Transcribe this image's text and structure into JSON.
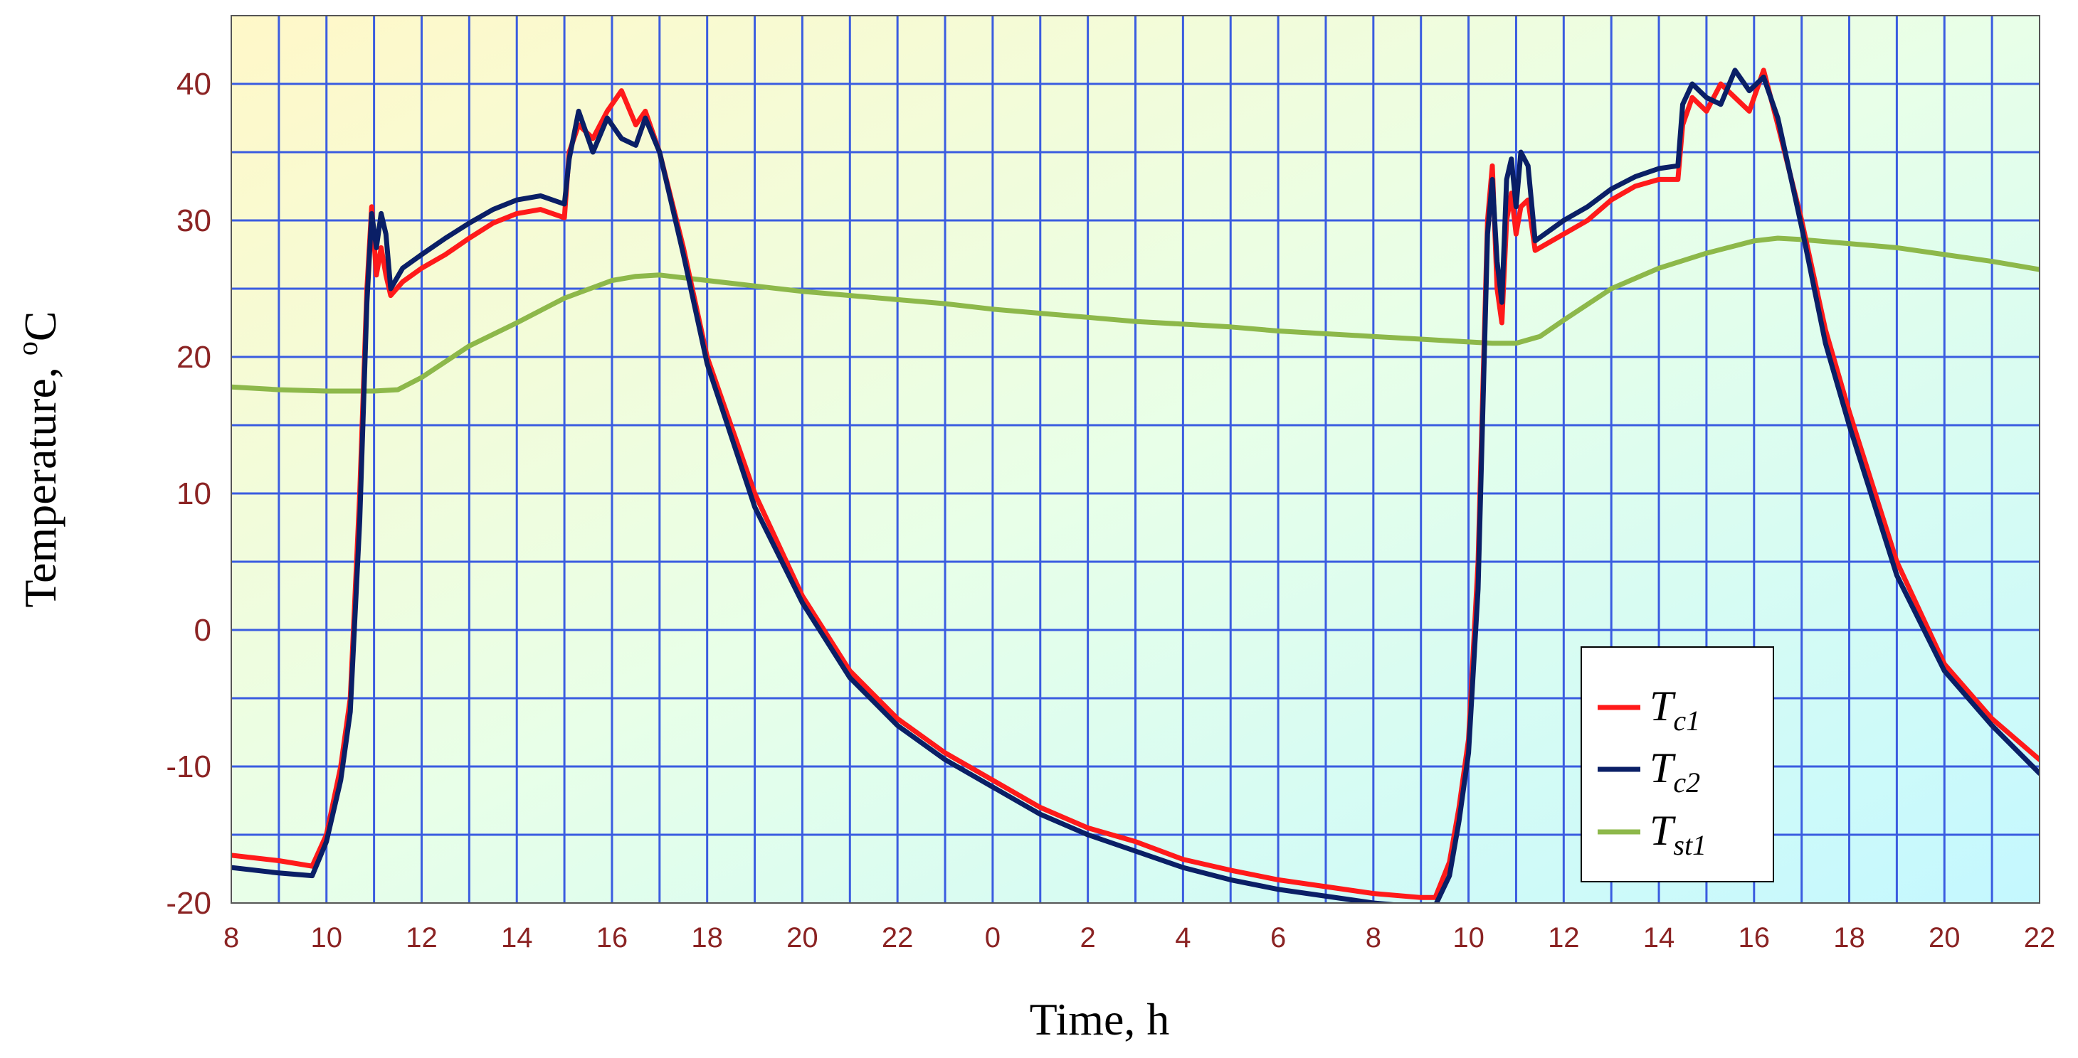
{
  "chart_data": {
    "type": "line",
    "xlabel": "Time, h",
    "ylabel_main": "Temperature, ",
    "ylabel_sup": "o",
    "ylabel_unit": "C",
    "ylim": [
      -20,
      45
    ],
    "xlim": [
      8,
      46
    ],
    "grid": true,
    "legend_position": "bottom-right",
    "y_ticks": [
      -20,
      -10,
      0,
      10,
      20,
      30,
      40
    ],
    "x_ticks": [
      {
        "x": 8,
        "label": "8"
      },
      {
        "x": 10,
        "label": "10"
      },
      {
        "x": 12,
        "label": "12"
      },
      {
        "x": 14,
        "label": "14"
      },
      {
        "x": 16,
        "label": "16"
      },
      {
        "x": 18,
        "label": "18"
      },
      {
        "x": 20,
        "label": "20"
      },
      {
        "x": 22,
        "label": "22"
      },
      {
        "x": 24,
        "label": "0"
      },
      {
        "x": 26,
        "label": "2"
      },
      {
        "x": 28,
        "label": "4"
      },
      {
        "x": 30,
        "label": "6"
      },
      {
        "x": 32,
        "label": "8"
      },
      {
        "x": 34,
        "label": "10"
      },
      {
        "x": 36,
        "label": "12"
      },
      {
        "x": 38,
        "label": "14"
      },
      {
        "x": 40,
        "label": "16"
      },
      {
        "x": 42,
        "label": "18"
      },
      {
        "x": 44,
        "label": "20"
      },
      {
        "x": 46,
        "label": "22"
      }
    ],
    "series": [
      {
        "name_main": "T",
        "name_sub": "c1",
        "color": "#ff1a1a",
        "points": [
          [
            8,
            -16.5
          ],
          [
            9,
            -16.9
          ],
          [
            9.7,
            -17.3
          ],
          [
            10.0,
            -15
          ],
          [
            10.3,
            -10
          ],
          [
            10.5,
            -5
          ],
          [
            10.7,
            10
          ],
          [
            10.85,
            25
          ],
          [
            10.95,
            31
          ],
          [
            11.05,
            26
          ],
          [
            11.15,
            28
          ],
          [
            11.25,
            26
          ],
          [
            11.35,
            24.5
          ],
          [
            11.6,
            25.5
          ],
          [
            12,
            26.5
          ],
          [
            12.5,
            27.5
          ],
          [
            13,
            28.7
          ],
          [
            13.5,
            29.8
          ],
          [
            14,
            30.5
          ],
          [
            14.5,
            30.8
          ],
          [
            15,
            30.2
          ],
          [
            15.1,
            35
          ],
          [
            15.3,
            37
          ],
          [
            15.6,
            36
          ],
          [
            15.9,
            38
          ],
          [
            16.2,
            39.5
          ],
          [
            16.5,
            37
          ],
          [
            16.7,
            38
          ],
          [
            17,
            35
          ],
          [
            17.5,
            28
          ],
          [
            18,
            20
          ],
          [
            19,
            10
          ],
          [
            20,
            2.5
          ],
          [
            21,
            -3
          ],
          [
            22,
            -6.5
          ],
          [
            23,
            -9
          ],
          [
            24,
            -11
          ],
          [
            24.5,
            -12
          ],
          [
            25,
            -13
          ],
          [
            26,
            -14.5
          ],
          [
            27,
            -15.5
          ],
          [
            28,
            -16.8
          ],
          [
            29,
            -17.6
          ],
          [
            30,
            -18.3
          ],
          [
            31,
            -18.8
          ],
          [
            32,
            -19.3
          ],
          [
            33,
            -19.6
          ],
          [
            33.3,
            -19.6
          ],
          [
            33.6,
            -17
          ],
          [
            33.8,
            -13
          ],
          [
            34.0,
            -8
          ],
          [
            34.2,
            5
          ],
          [
            34.4,
            30
          ],
          [
            34.5,
            34
          ],
          [
            34.6,
            25
          ],
          [
            34.7,
            22.5
          ],
          [
            34.8,
            30
          ],
          [
            34.9,
            32
          ],
          [
            35.0,
            29
          ],
          [
            35.1,
            31
          ],
          [
            35.25,
            31.5
          ],
          [
            35.4,
            27.8
          ],
          [
            36,
            29
          ],
          [
            36.5,
            30
          ],
          [
            37,
            31.5
          ],
          [
            37.5,
            32.5
          ],
          [
            38,
            33
          ],
          [
            38.4,
            33
          ],
          [
            38.5,
            37
          ],
          [
            38.7,
            39
          ],
          [
            39,
            38
          ],
          [
            39.3,
            40
          ],
          [
            39.6,
            39
          ],
          [
            39.9,
            38
          ],
          [
            40.2,
            41
          ],
          [
            40.5,
            37
          ],
          [
            41,
            30
          ],
          [
            41.5,
            22
          ],
          [
            42,
            16
          ],
          [
            43,
            5
          ],
          [
            44,
            -2.5
          ],
          [
            45,
            -6.5
          ],
          [
            46,
            -9.5
          ]
        ]
      },
      {
        "name_main": "T",
        "name_sub": "c2",
        "color": "#0a1f66",
        "points": [
          [
            8,
            -17.4
          ],
          [
            9,
            -17.8
          ],
          [
            9.7,
            -18
          ],
          [
            10.0,
            -15.5
          ],
          [
            10.3,
            -11
          ],
          [
            10.5,
            -6
          ],
          [
            10.7,
            8
          ],
          [
            10.85,
            24
          ],
          [
            10.95,
            30.5
          ],
          [
            11.05,
            28
          ],
          [
            11.15,
            30.5
          ],
          [
            11.25,
            29
          ],
          [
            11.35,
            25
          ],
          [
            11.6,
            26.5
          ],
          [
            12,
            27.5
          ],
          [
            12.5,
            28.7
          ],
          [
            13,
            29.8
          ],
          [
            13.5,
            30.8
          ],
          [
            14,
            31.5
          ],
          [
            14.5,
            31.8
          ],
          [
            15,
            31.2
          ],
          [
            15.1,
            34.5
          ],
          [
            15.3,
            38
          ],
          [
            15.6,
            35
          ],
          [
            15.9,
            37.5
          ],
          [
            16.2,
            36
          ],
          [
            16.5,
            35.5
          ],
          [
            16.7,
            37.5
          ],
          [
            17,
            35
          ],
          [
            17.5,
            27.5
          ],
          [
            18,
            19.5
          ],
          [
            19,
            9
          ],
          [
            20,
            2
          ],
          [
            21,
            -3.5
          ],
          [
            22,
            -7
          ],
          [
            23,
            -9.5
          ],
          [
            24,
            -11.5
          ],
          [
            24.5,
            -12.5
          ],
          [
            25,
            -13.5
          ],
          [
            26,
            -15
          ],
          [
            27,
            -16.2
          ],
          [
            28,
            -17.4
          ],
          [
            29,
            -18.3
          ],
          [
            30,
            -19
          ],
          [
            31,
            -19.5
          ],
          [
            32,
            -20
          ],
          [
            33,
            -20.3
          ],
          [
            33.3,
            -20.2
          ],
          [
            33.6,
            -18
          ],
          [
            33.8,
            -14
          ],
          [
            34.0,
            -9
          ],
          [
            34.2,
            3
          ],
          [
            34.4,
            29
          ],
          [
            34.5,
            33
          ],
          [
            34.6,
            27
          ],
          [
            34.7,
            24
          ],
          [
            34.8,
            33
          ],
          [
            34.9,
            34.5
          ],
          [
            35.0,
            31
          ],
          [
            35.1,
            35
          ],
          [
            35.25,
            34
          ],
          [
            35.4,
            28.5
          ],
          [
            36,
            30
          ],
          [
            36.5,
            31
          ],
          [
            37,
            32.3
          ],
          [
            37.5,
            33.2
          ],
          [
            38,
            33.8
          ],
          [
            38.4,
            34
          ],
          [
            38.5,
            38.5
          ],
          [
            38.7,
            40
          ],
          [
            39,
            39
          ],
          [
            39.3,
            38.5
          ],
          [
            39.6,
            41
          ],
          [
            39.9,
            39.5
          ],
          [
            40.2,
            40.5
          ],
          [
            40.5,
            37.5
          ],
          [
            41,
            29.5
          ],
          [
            41.5,
            21
          ],
          [
            42,
            15
          ],
          [
            43,
            4
          ],
          [
            44,
            -3
          ],
          [
            45,
            -7
          ],
          [
            46,
            -10.5
          ]
        ]
      },
      {
        "name_main": "T",
        "name_sub": "st1",
        "color": "#8db84a",
        "points": [
          [
            8,
            17.8
          ],
          [
            9,
            17.6
          ],
          [
            10,
            17.5
          ],
          [
            11,
            17.5
          ],
          [
            11.5,
            17.6
          ],
          [
            12,
            18.5
          ],
          [
            13,
            20.8
          ],
          [
            14,
            22.5
          ],
          [
            15,
            24.3
          ],
          [
            16,
            25.6
          ],
          [
            16.5,
            25.9
          ],
          [
            17,
            26
          ],
          [
            18,
            25.6
          ],
          [
            19,
            25.2
          ],
          [
            20,
            24.8
          ],
          [
            21,
            24.5
          ],
          [
            22,
            24.2
          ],
          [
            23,
            23.9
          ],
          [
            24,
            23.5
          ],
          [
            25,
            23.2
          ],
          [
            26,
            22.9
          ],
          [
            27,
            22.6
          ],
          [
            28,
            22.4
          ],
          [
            29,
            22.2
          ],
          [
            30,
            21.9
          ],
          [
            31,
            21.7
          ],
          [
            32,
            21.5
          ],
          [
            33,
            21.3
          ],
          [
            34,
            21.1
          ],
          [
            34.5,
            21
          ],
          [
            35,
            21
          ],
          [
            35.5,
            21.5
          ],
          [
            36,
            22.7
          ],
          [
            37,
            25
          ],
          [
            38,
            26.5
          ],
          [
            39,
            27.6
          ],
          [
            40,
            28.5
          ],
          [
            40.5,
            28.7
          ],
          [
            41,
            28.6
          ],
          [
            42,
            28.3
          ],
          [
            43,
            28
          ],
          [
            44,
            27.5
          ],
          [
            45,
            27
          ],
          [
            46,
            26.4
          ]
        ]
      }
    ]
  }
}
